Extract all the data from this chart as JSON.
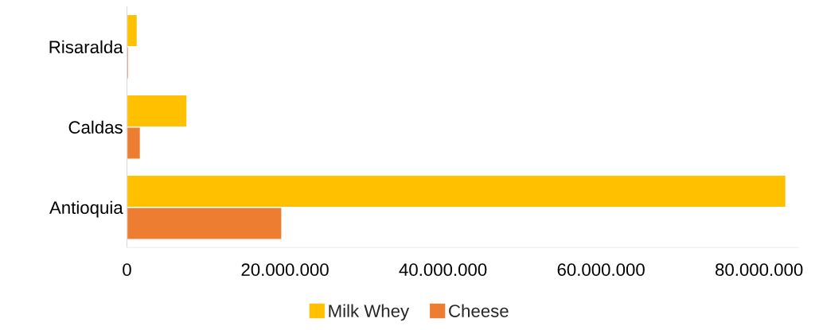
{
  "chart_data": {
    "type": "bar",
    "orientation": "horizontal",
    "categories": [
      "Risaralda",
      "Caldas",
      "Antioquia"
    ],
    "series": [
      {
        "name": "Milk Whey",
        "color": "#ffc000",
        "values": [
          1300000,
          7600000,
          83400000
        ]
      },
      {
        "name": "Cheese",
        "color": "#ed7d31",
        "values": [
          200000,
          1700000,
          19600000
        ]
      }
    ],
    "xlim": [
      0,
      85000000
    ],
    "xticks": [
      0,
      {
        "value": 20000000,
        "label": "20.000.000"
      },
      {
        "value": 40000000,
        "label": "40.000.000"
      },
      {
        "value": 60000000,
        "label": "60.000.000"
      },
      {
        "value": 80000000,
        "label": "80.000.000"
      }
    ],
    "grid": false,
    "legend": "bottom"
  }
}
